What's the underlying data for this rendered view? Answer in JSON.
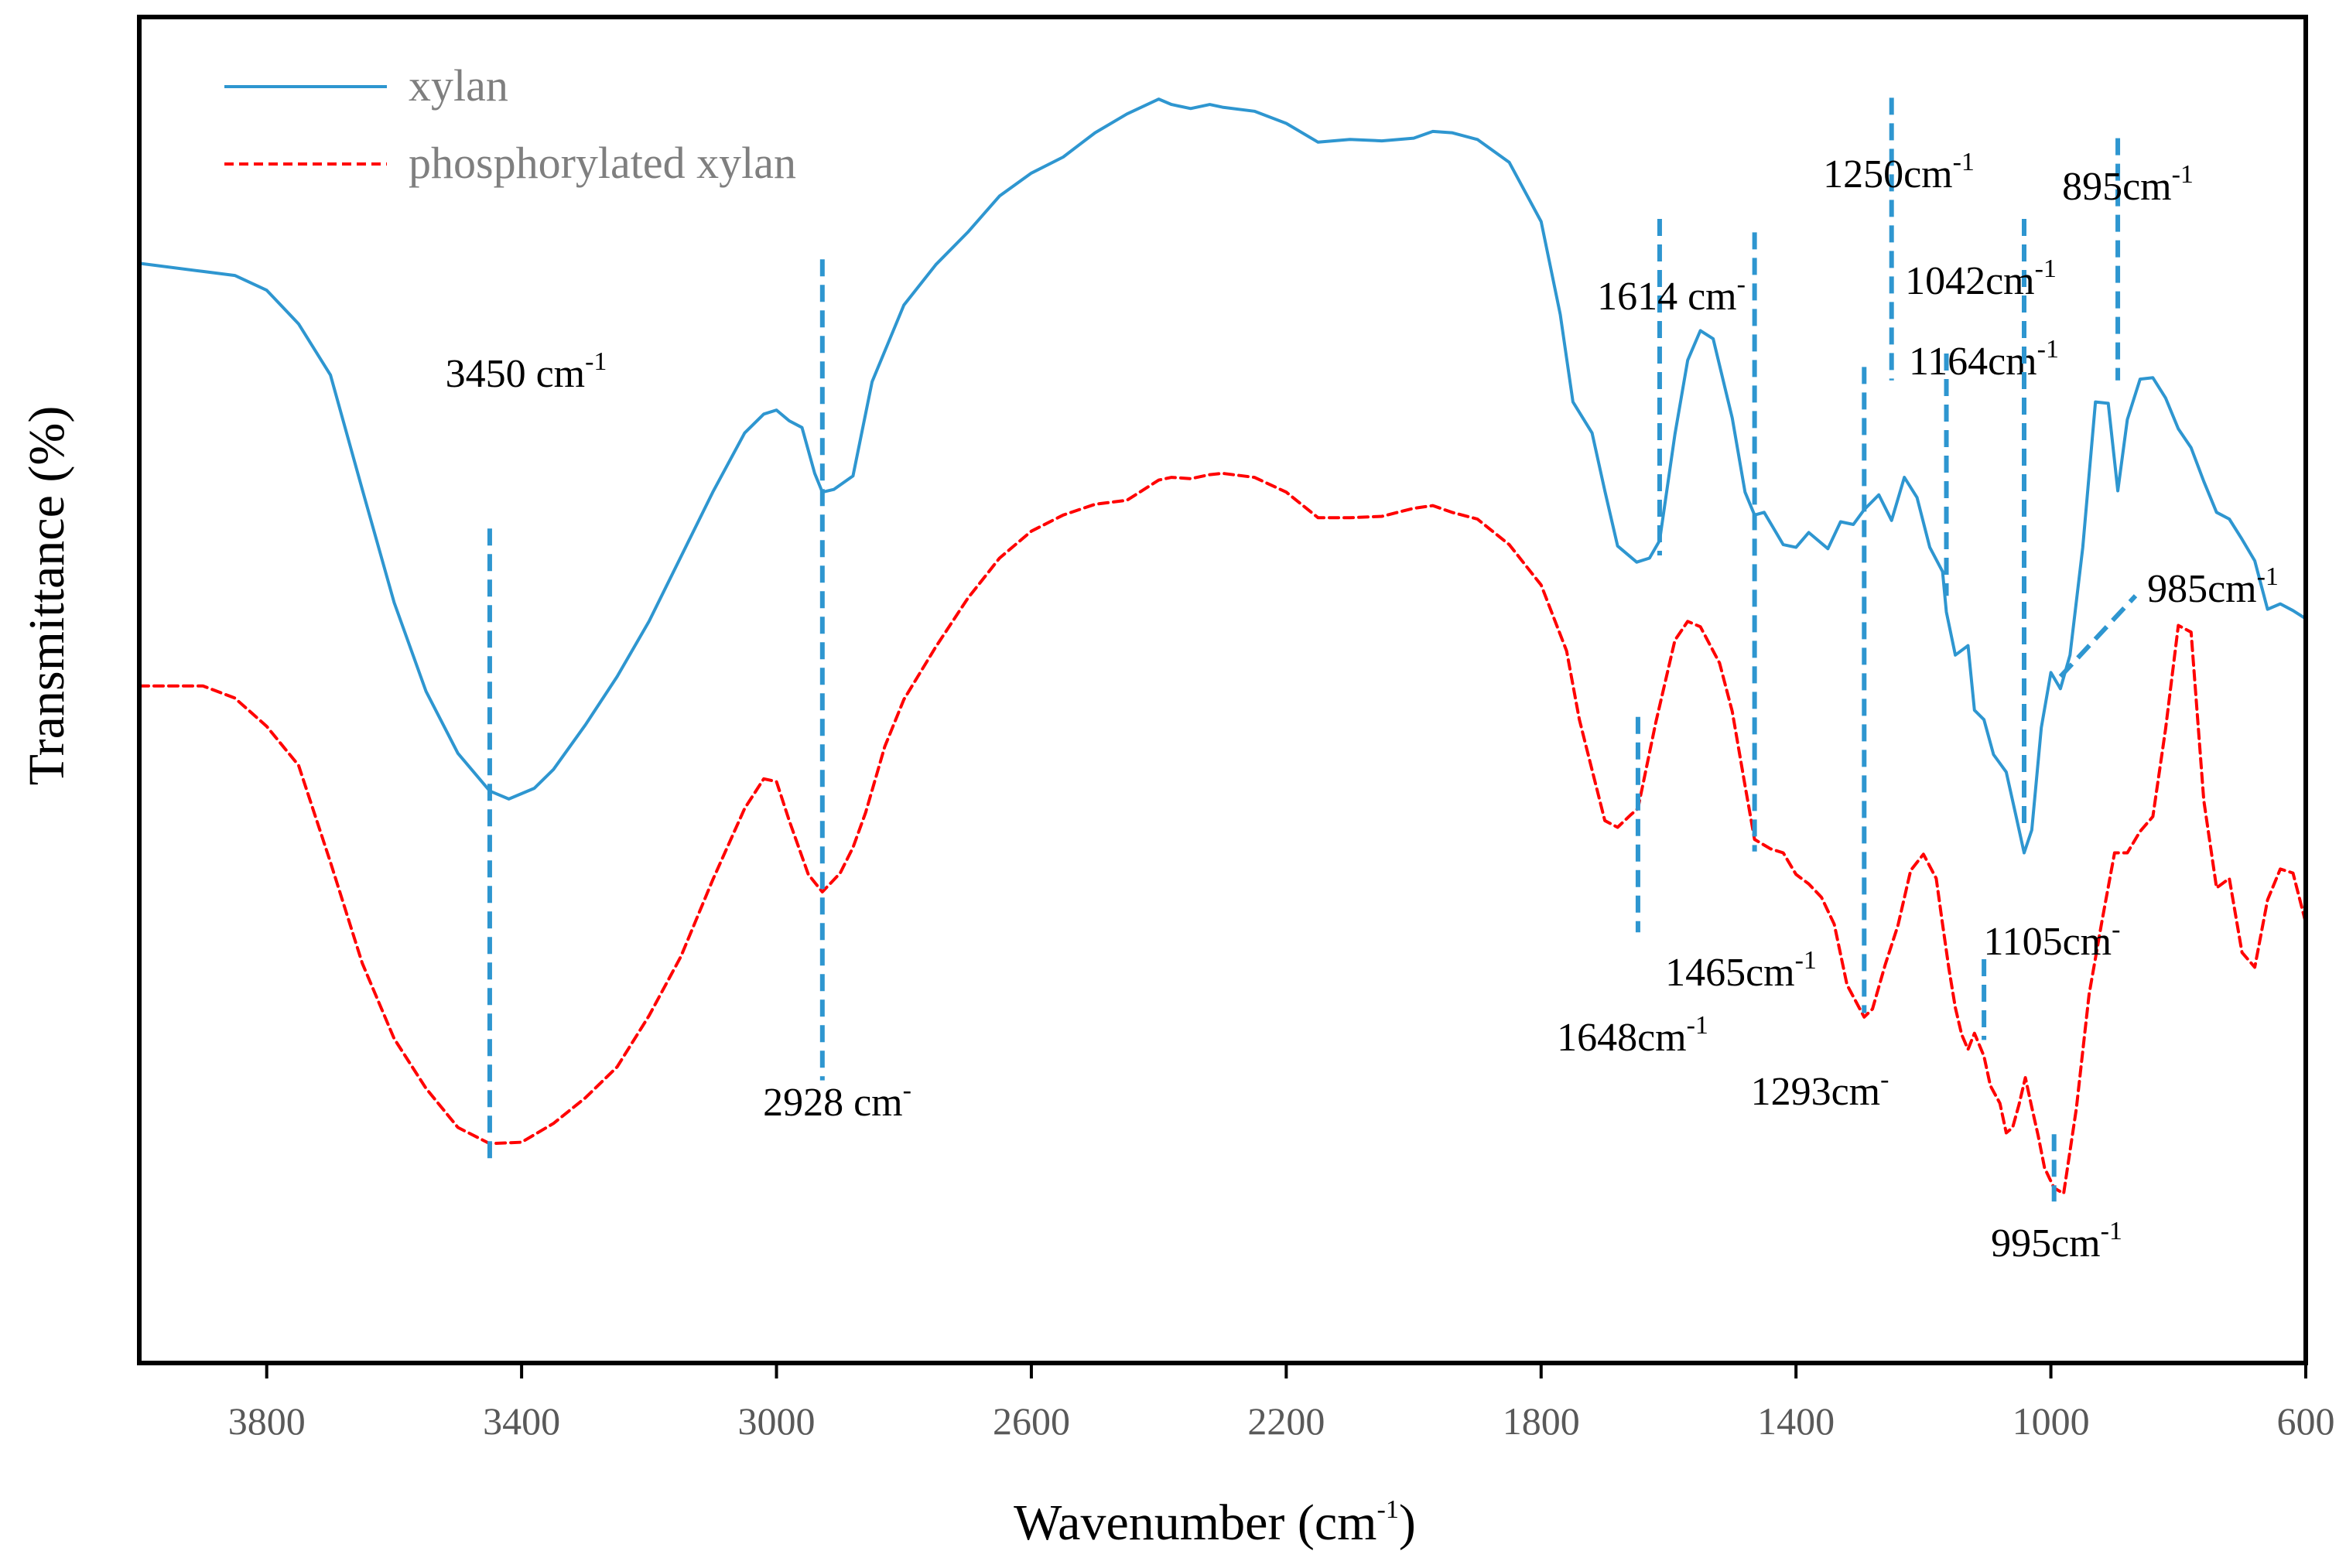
{
  "chart_data": {
    "type": "line",
    "title": "",
    "xlabel": "Wavenumber (cm",
    "xlabel_sup": "-1",
    "xlabel_tail": ")",
    "ylabel": "Transmittance (%)",
    "xlim": [
      4000,
      600
    ],
    "ylim": [
      0,
      100
    ],
    "x_reversed": true,
    "grid": false,
    "legend_position": "top-left",
    "x_ticks": [
      "3800",
      "3400",
      "3000",
      "2600",
      "2200",
      "1800",
      "1400",
      "1000",
      "600"
    ],
    "x_tick_values": [
      3800,
      3400,
      3000,
      2600,
      2200,
      1800,
      1400,
      1000,
      600
    ],
    "series": [
      {
        "name": "xylan",
        "color": "#2e96d0",
        "style": "solid",
        "points": [
          [
            4000,
            81.7
          ],
          [
            3900,
            81.1
          ],
          [
            3850,
            80.8
          ],
          [
            3800,
            79.7
          ],
          [
            3750,
            77.2
          ],
          [
            3700,
            73.4
          ],
          [
            3650,
            64.9
          ],
          [
            3600,
            56.5
          ],
          [
            3550,
            49.9
          ],
          [
            3500,
            45.3
          ],
          [
            3450,
            42.5
          ],
          [
            3420,
            41.9
          ],
          [
            3380,
            42.7
          ],
          [
            3350,
            44.1
          ],
          [
            3300,
            47.4
          ],
          [
            3250,
            51.0
          ],
          [
            3200,
            55.1
          ],
          [
            3150,
            59.9
          ],
          [
            3100,
            64.7
          ],
          [
            3050,
            69.1
          ],
          [
            3020,
            70.5
          ],
          [
            3000,
            70.8
          ],
          [
            2980,
            70.0
          ],
          [
            2960,
            69.5
          ],
          [
            2940,
            66.1
          ],
          [
            2928,
            64.7
          ],
          [
            2910,
            64.9
          ],
          [
            2880,
            65.9
          ],
          [
            2850,
            72.9
          ],
          [
            2800,
            78.6
          ],
          [
            2750,
            81.6
          ],
          [
            2700,
            84.0
          ],
          [
            2650,
            86.7
          ],
          [
            2600,
            88.4
          ],
          [
            2550,
            89.6
          ],
          [
            2500,
            91.4
          ],
          [
            2450,
            92.8
          ],
          [
            2400,
            93.9
          ],
          [
            2380,
            93.5
          ],
          [
            2350,
            93.2
          ],
          [
            2320,
            93.5
          ],
          [
            2300,
            93.3
          ],
          [
            2250,
            93.0
          ],
          [
            2200,
            92.1
          ],
          [
            2150,
            90.7
          ],
          [
            2100,
            90.9
          ],
          [
            2050,
            90.8
          ],
          [
            2000,
            91.0
          ],
          [
            1970,
            91.5
          ],
          [
            1940,
            91.4
          ],
          [
            1900,
            90.9
          ],
          [
            1850,
            89.2
          ],
          [
            1800,
            84.8
          ],
          [
            1770,
            77.9
          ],
          [
            1750,
            71.4
          ],
          [
            1720,
            69.1
          ],
          [
            1700,
            64.8
          ],
          [
            1680,
            60.7
          ],
          [
            1650,
            59.5
          ],
          [
            1630,
            59.8
          ],
          [
            1614,
            61.1
          ],
          [
            1590,
            69.0
          ],
          [
            1570,
            74.5
          ],
          [
            1550,
            76.7
          ],
          [
            1530,
            76.1
          ],
          [
            1500,
            70.2
          ],
          [
            1480,
            64.7
          ],
          [
            1465,
            63.0
          ],
          [
            1450,
            63.2
          ],
          [
            1420,
            60.8
          ],
          [
            1400,
            60.6
          ],
          [
            1380,
            61.7
          ],
          [
            1350,
            60.5
          ],
          [
            1330,
            62.5
          ],
          [
            1310,
            62.3
          ],
          [
            1293,
            63.4
          ],
          [
            1270,
            64.5
          ],
          [
            1250,
            62.6
          ],
          [
            1230,
            65.8
          ],
          [
            1210,
            64.3
          ],
          [
            1190,
            60.6
          ],
          [
            1170,
            58.8
          ],
          [
            1164,
            55.8
          ],
          [
            1150,
            52.6
          ],
          [
            1130,
            53.3
          ],
          [
            1120,
            48.5
          ],
          [
            1105,
            47.8
          ],
          [
            1090,
            45.2
          ],
          [
            1070,
            43.9
          ],
          [
            1055,
            40.7
          ],
          [
            1042,
            37.9
          ],
          [
            1030,
            39.6
          ],
          [
            1015,
            47.2
          ],
          [
            1000,
            51.3
          ],
          [
            985,
            50.1
          ],
          [
            970,
            52.6
          ],
          [
            950,
            60.6
          ],
          [
            930,
            71.4
          ],
          [
            910,
            71.3
          ],
          [
            895,
            64.8
          ],
          [
            880,
            70.1
          ],
          [
            860,
            73.1
          ],
          [
            840,
            73.2
          ],
          [
            820,
            71.7
          ],
          [
            800,
            69.4
          ],
          [
            780,
            68.0
          ],
          [
            760,
            65.5
          ],
          [
            740,
            63.2
          ],
          [
            720,
            62.7
          ],
          [
            700,
            61.2
          ],
          [
            680,
            59.6
          ],
          [
            660,
            56.0
          ],
          [
            640,
            56.4
          ],
          [
            620,
            55.9
          ],
          [
            600,
            55.3
          ]
        ]
      },
      {
        "name": "phosphorylated xylan",
        "color": "#ff0000",
        "style": "dashed",
        "points": [
          [
            4000,
            50.3
          ],
          [
            3950,
            50.3
          ],
          [
            3900,
            50.3
          ],
          [
            3850,
            49.4
          ],
          [
            3800,
            47.3
          ],
          [
            3750,
            44.4
          ],
          [
            3700,
            37.2
          ],
          [
            3650,
            29.7
          ],
          [
            3600,
            24.1
          ],
          [
            3550,
            20.4
          ],
          [
            3500,
            17.5
          ],
          [
            3450,
            16.3
          ],
          [
            3400,
            16.4
          ],
          [
            3350,
            17.8
          ],
          [
            3300,
            19.7
          ],
          [
            3250,
            22.0
          ],
          [
            3200,
            25.8
          ],
          [
            3150,
            30.2
          ],
          [
            3100,
            35.9
          ],
          [
            3050,
            41.2
          ],
          [
            3020,
            43.4
          ],
          [
            3000,
            43.2
          ],
          [
            2980,
            40.3
          ],
          [
            2950,
            36.3
          ],
          [
            2928,
            35.0
          ],
          [
            2900,
            36.4
          ],
          [
            2880,
            38.3
          ],
          [
            2860,
            40.9
          ],
          [
            2830,
            45.8
          ],
          [
            2800,
            49.3
          ],
          [
            2750,
            53.2
          ],
          [
            2700,
            56.8
          ],
          [
            2650,
            59.8
          ],
          [
            2600,
            61.8
          ],
          [
            2550,
            63.0
          ],
          [
            2500,
            63.8
          ],
          [
            2450,
            64.1
          ],
          [
            2400,
            65.6
          ],
          [
            2380,
            65.8
          ],
          [
            2350,
            65.7
          ],
          [
            2320,
            66.0
          ],
          [
            2300,
            66.1
          ],
          [
            2250,
            65.8
          ],
          [
            2200,
            64.7
          ],
          [
            2150,
            62.8
          ],
          [
            2100,
            62.8
          ],
          [
            2050,
            62.9
          ],
          [
            2000,
            63.5
          ],
          [
            1970,
            63.7
          ],
          [
            1940,
            63.2
          ],
          [
            1900,
            62.7
          ],
          [
            1850,
            60.8
          ],
          [
            1800,
            57.8
          ],
          [
            1760,
            52.9
          ],
          [
            1740,
            47.8
          ],
          [
            1700,
            40.3
          ],
          [
            1680,
            39.8
          ],
          [
            1660,
            40.7
          ],
          [
            1648,
            41.2
          ],
          [
            1620,
            47.6
          ],
          [
            1590,
            53.7
          ],
          [
            1570,
            55.1
          ],
          [
            1550,
            54.7
          ],
          [
            1520,
            52.0
          ],
          [
            1500,
            48.4
          ],
          [
            1480,
            42.9
          ],
          [
            1465,
            38.9
          ],
          [
            1440,
            38.2
          ],
          [
            1420,
            37.9
          ],
          [
            1400,
            36.3
          ],
          [
            1380,
            35.6
          ],
          [
            1360,
            34.6
          ],
          [
            1340,
            32.6
          ],
          [
            1320,
            28.1
          ],
          [
            1293,
            25.7
          ],
          [
            1280,
            26.3
          ],
          [
            1260,
            29.6
          ],
          [
            1240,
            32.5
          ],
          [
            1220,
            36.6
          ],
          [
            1200,
            37.8
          ],
          [
            1180,
            36.0
          ],
          [
            1170,
            32.6
          ],
          [
            1160,
            29.3
          ],
          [
            1150,
            26.4
          ],
          [
            1140,
            24.4
          ],
          [
            1130,
            23.3
          ],
          [
            1120,
            24.5
          ],
          [
            1105,
            22.8
          ],
          [
            1095,
            20.6
          ],
          [
            1080,
            19.3
          ],
          [
            1070,
            17.1
          ],
          [
            1060,
            17.5
          ],
          [
            1050,
            19.2
          ],
          [
            1040,
            21.2
          ],
          [
            1030,
            19.0
          ],
          [
            1020,
            16.9
          ],
          [
            1010,
            14.5
          ],
          [
            995,
            13.0
          ],
          [
            980,
            12.6
          ],
          [
            960,
            18.9
          ],
          [
            940,
            27.4
          ],
          [
            920,
            32.8
          ],
          [
            900,
            37.9
          ],
          [
            880,
            37.9
          ],
          [
            860,
            39.5
          ],
          [
            840,
            40.6
          ],
          [
            820,
            47.1
          ],
          [
            800,
            54.8
          ],
          [
            780,
            54.3
          ],
          [
            760,
            41.8
          ],
          [
            740,
            35.3
          ],
          [
            720,
            36.0
          ],
          [
            700,
            30.5
          ],
          [
            680,
            29.4
          ],
          [
            660,
            34.4
          ],
          [
            640,
            36.7
          ],
          [
            620,
            36.4
          ],
          [
            600,
            32.7
          ]
        ]
      }
    ],
    "annotations": [
      {
        "text": "3450 cm",
        "sup": "-1",
        "line_x": 3450,
        "line_y": [
          15,
          62
        ]
      },
      {
        "text": "2928 cm",
        "sup": "-",
        "line_x": 2928,
        "line_y": [
          21,
          82
        ]
      },
      {
        "text": "1614 cm",
        "sup": "-",
        "line_x": 1614,
        "line_y": [
          60,
          85
        ]
      },
      {
        "text": "1648cm",
        "sup": "-1",
        "line_x": 1648,
        "line_y": [
          32,
          48
        ]
      },
      {
        "text": "1465cm",
        "sup": "-1",
        "line_x": 1465,
        "line_y": [
          38,
          84
        ]
      },
      {
        "text": "1293cm",
        "sup": "-",
        "line_x": 1293,
        "line_y": [
          26,
          74
        ]
      },
      {
        "text": "1250cm",
        "sup": "-1",
        "line_x": 1250,
        "line_y": [
          73,
          94
        ]
      },
      {
        "text": "1164cm",
        "sup": "-1",
        "line_x": 1164,
        "line_y": [
          57,
          75
        ]
      },
      {
        "text": "1105cm",
        "sup": "-",
        "line_x": 1105,
        "line_y": [
          24,
          30
        ]
      },
      {
        "text": "1042cm",
        "sup": "-1",
        "line_x": 1042,
        "line_y": [
          40,
          85
        ]
      },
      {
        "text": "995cm",
        "sup": "-1",
        "line_x": 995,
        "line_y": [
          12,
          17
        ]
      },
      {
        "text": "985cm",
        "sup": "-1",
        "line_x": 985,
        "line_y": [
          51,
          57
        ]
      },
      {
        "text": "895cm",
        "sup": "-1",
        "line_x": 895,
        "line_y": [
          73,
          91
        ]
      }
    ]
  }
}
